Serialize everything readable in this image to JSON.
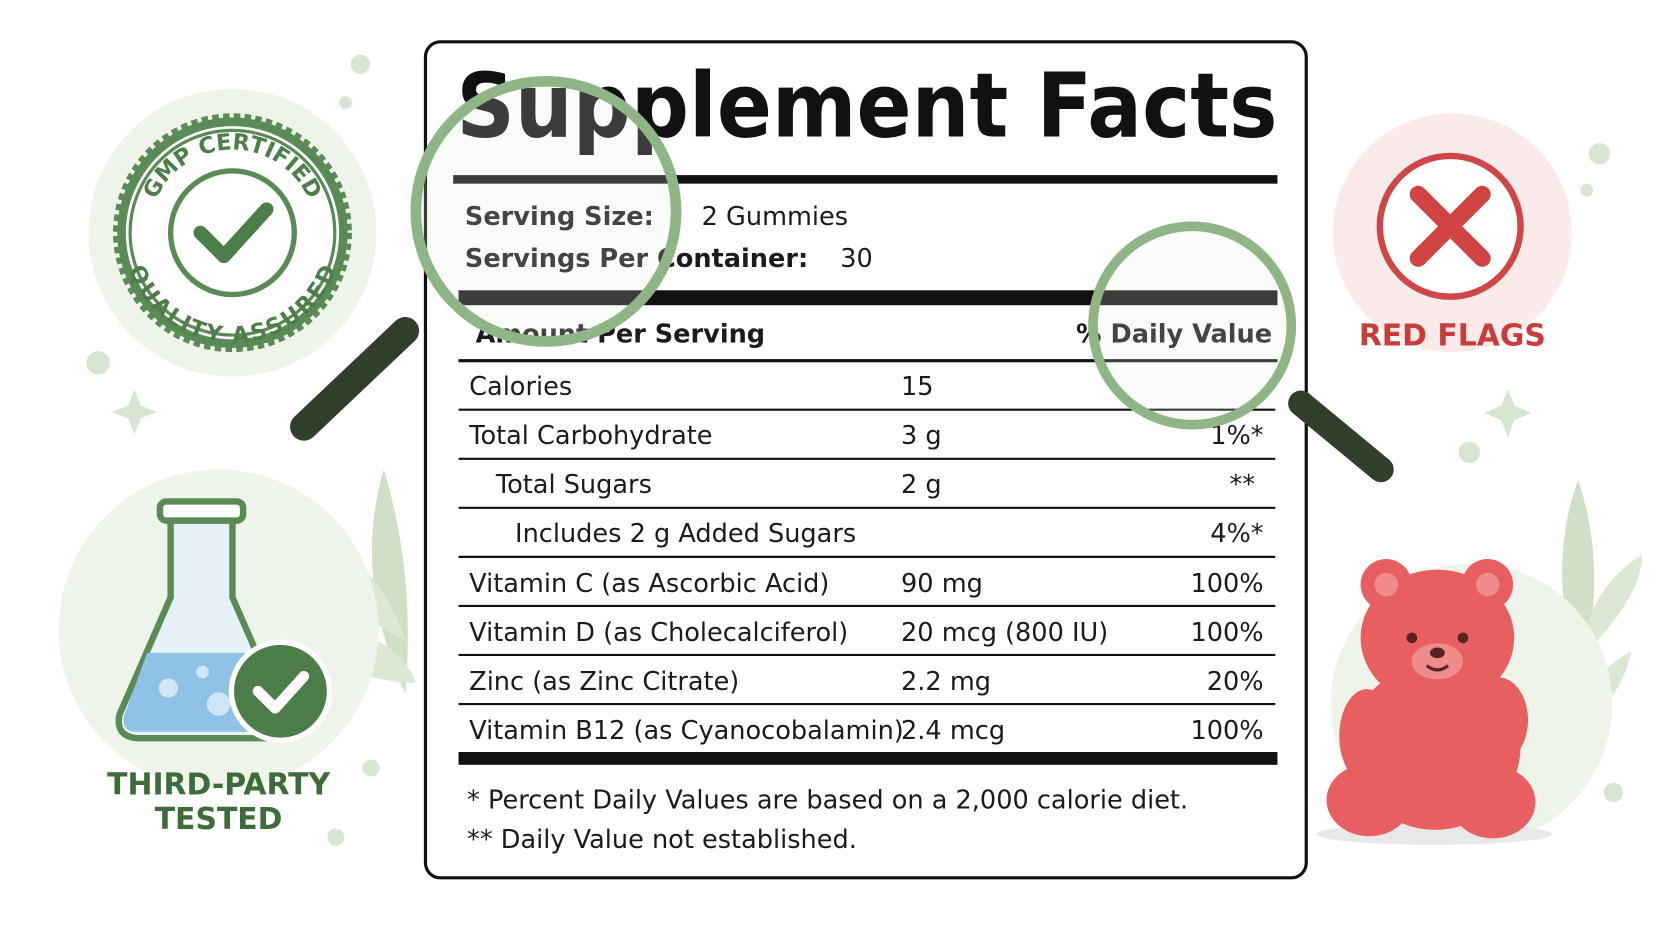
{
  "badges": {
    "gmp": {
      "top": "GMP CERTIFIED",
      "bottom": "QUALITY ASSURED"
    },
    "third_party": [
      "THIRD-PARTY",
      "TESTED"
    ],
    "red_flags": "RED FLAGS"
  },
  "label": {
    "title": "Supplement Facts",
    "serving_size": {
      "label": "Serving Size:",
      "value": "2 Gummies"
    },
    "servings_per_container": {
      "label": "Servings Per Container:",
      "value": "30"
    },
    "header": [
      "Amount Per Serving",
      "% Daily Value"
    ],
    "rows": [
      [
        "Calories",
        "15"
      ],
      [
        "Total Carbohydrate",
        "3 g",
        "1%*"
      ],
      [
        "Total Sugars",
        "2 g",
        "**"
      ],
      [
        "Includes 2 g Added Sugars",
        "4%*"
      ],
      [
        "Vitamin C (as Ascorbic Acid)",
        "90 mg",
        "100%"
      ],
      [
        "Vitamin D (as Cholecalciferol)",
        "20 mcg (800 IU)",
        "100%"
      ],
      [
        "Zinc (as Zinc Citrate)",
        "2.2 mg",
        "20%"
      ],
      [
        "Vitamin B12 (as Cyanocobalamin)",
        "2.4 mcg",
        "100%"
      ]
    ],
    "footnotes": [
      "* Percent Daily Values are based on a 2,000 calorie diet.",
      "** Daily Value not established."
    ]
  }
}
